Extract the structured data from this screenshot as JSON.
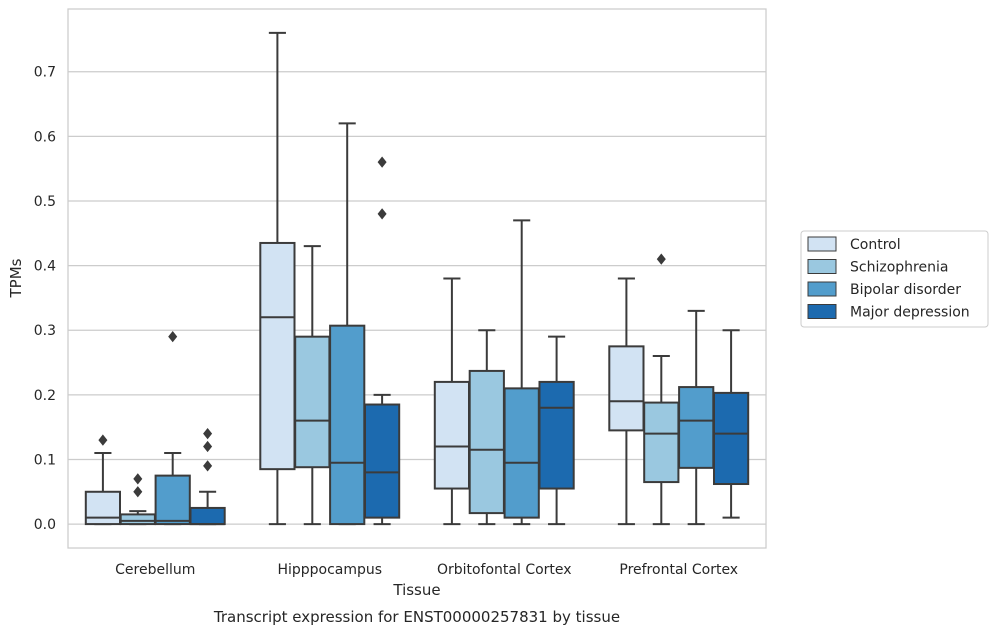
{
  "chart_data": {
    "type": "box",
    "caption": "Transcript expression for ENST00000257831 by tissue",
    "xlabel": "Tissue",
    "ylabel": "TPMs",
    "ylim": [
      -0.037,
      0.797
    ],
    "yticks": [
      "0.0",
      "0.1",
      "0.2",
      "0.3",
      "0.4",
      "0.5",
      "0.6",
      "0.7"
    ],
    "grid": "horizontal",
    "legend_position": "right",
    "categories": [
      "Cerebellum",
      "Hipppocampus",
      "Orbitofontal Cortex",
      "Prefrontal Cortex"
    ],
    "series": [
      {
        "name": "Control",
        "color": "#d2e3f3",
        "boxes": [
          {
            "whislo": 0.0,
            "q1": 0.0,
            "med": 0.01,
            "q3": 0.05,
            "whishi": 0.11,
            "fliers": [
              0.13
            ]
          },
          {
            "whislo": 0.0,
            "q1": 0.085,
            "med": 0.32,
            "q3": 0.435,
            "whishi": 0.76,
            "fliers": []
          },
          {
            "whislo": 0.0,
            "q1": 0.055,
            "med": 0.12,
            "q3": 0.22,
            "whishi": 0.38,
            "fliers": []
          },
          {
            "whislo": 0.0,
            "q1": 0.145,
            "med": 0.19,
            "q3": 0.275,
            "whishi": 0.38,
            "fliers": []
          }
        ]
      },
      {
        "name": "Schizophrenia",
        "color": "#9ac8e0",
        "boxes": [
          {
            "whislo": 0.0,
            "q1": 0.0,
            "med": 0.005,
            "q3": 0.015,
            "whishi": 0.02,
            "fliers": [
              0.05,
              0.07
            ]
          },
          {
            "whislo": 0.0,
            "q1": 0.088,
            "med": 0.16,
            "q3": 0.29,
            "whishi": 0.43,
            "fliers": []
          },
          {
            "whislo": 0.0,
            "q1": 0.017,
            "med": 0.115,
            "q3": 0.237,
            "whishi": 0.3,
            "fliers": []
          },
          {
            "whislo": 0.0,
            "q1": 0.065,
            "med": 0.14,
            "q3": 0.188,
            "whishi": 0.26,
            "fliers": [
              0.41
            ]
          }
        ]
      },
      {
        "name": "Bipolar disorder",
        "color": "#529dcc",
        "boxes": [
          {
            "whislo": 0.0,
            "q1": 0.0,
            "med": 0.005,
            "q3": 0.075,
            "whishi": 0.11,
            "fliers": [
              0.29
            ]
          },
          {
            "whislo": 0.0,
            "q1": 0.0,
            "med": 0.095,
            "q3": 0.307,
            "whishi": 0.62,
            "fliers": []
          },
          {
            "whislo": 0.0,
            "q1": 0.01,
            "med": 0.095,
            "q3": 0.21,
            "whishi": 0.47,
            "fliers": []
          },
          {
            "whislo": 0.0,
            "q1": 0.087,
            "med": 0.16,
            "q3": 0.212,
            "whishi": 0.33,
            "fliers": []
          }
        ]
      },
      {
        "name": "Major depression",
        "color": "#1c6aaf",
        "boxes": [
          {
            "whislo": 0.0,
            "q1": 0.0,
            "med": 0.0,
            "q3": 0.025,
            "whishi": 0.05,
            "fliers": [
              0.09,
              0.12,
              0.14
            ]
          },
          {
            "whislo": 0.0,
            "q1": 0.01,
            "med": 0.08,
            "q3": 0.185,
            "whishi": 0.2,
            "fliers": [
              0.48,
              0.56
            ]
          },
          {
            "whislo": 0.0,
            "q1": 0.055,
            "med": 0.18,
            "q3": 0.22,
            "whishi": 0.29,
            "fliers": []
          },
          {
            "whislo": 0.01,
            "q1": 0.062,
            "med": 0.14,
            "q3": 0.203,
            "whishi": 0.3,
            "fliers": []
          }
        ]
      }
    ]
  }
}
